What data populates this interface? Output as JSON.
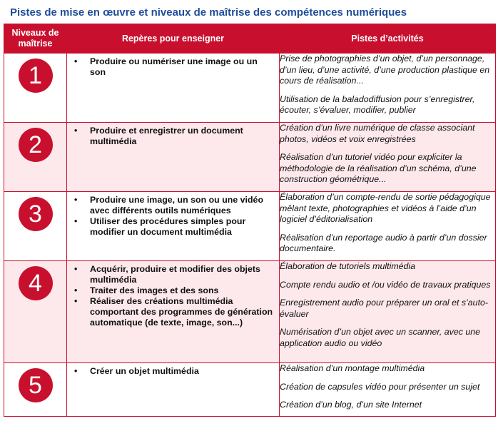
{
  "title": "Pistes de mise en œuvre et niveaux de maîtrise des compétences numériques",
  "headers": {
    "level": "Niveaux de maîtrise",
    "refs": "Repères pour enseigner",
    "activities": "Pistes d’activités"
  },
  "rows": [
    {
      "level": "1",
      "refs": [
        "Produire ou numériser une image ou un son"
      ],
      "activities": [
        "Prise de photographies d’un objet, d’un personnage, d’un lieu, d’une activité, d’une production plastique en cours de réalisation...",
        "Utilisation de la baladodiffusion pour s’enregistrer, écouter, s’évaluer, modifier, publier"
      ]
    },
    {
      "level": "2",
      "refs": [
        "Produire et enregistrer un document multimédia"
      ],
      "activities": [
        "Création d’un livre numérique de classe associant photos, vidéos et voix enregistrées",
        "Réalisation d’un tutoriel vidéo pour expliciter la méthodologie de la réalisation d’un schéma, d’une construction géométrique..."
      ]
    },
    {
      "level": "3",
      "refs": [
        "Produire une image, un son ou une vidéo avec différents outils numériques",
        "Utiliser des procédures simples pour modifier un document multimédia"
      ],
      "activities": [
        "Élaboration d’un compte-rendu de sortie pédagogique mêlant texte, photographies et vidéos à l’aide d’un logiciel d’éditorialisation",
        "Réalisation d’un reportage audio à partir d’un dossier documentaire."
      ]
    },
    {
      "level": "4",
      "refs": [
        "Acquérir, produire et modifier des objets multimédia",
        "Traiter des images et des sons",
        "Réaliser des créations multimédia comportant des programmes de génération automatique (de texte, image, son...)"
      ],
      "activities": [
        "Élaboration de tutoriels multimédia",
        "Compte rendu audio et /ou vidéo de travaux pratiques",
        "Enregistrement audio pour préparer un oral et s’auto-évaluer",
        "Numérisation d’un objet avec un scanner, avec une application audio ou vidéo"
      ]
    },
    {
      "level": "5",
      "refs": [
        "Créer un objet multimédia"
      ],
      "activities": [
        "Réalisation d’un montage multimédia",
        "Création de capsules vidéo pour présenter un sujet",
        "Création d’un blog, d’un site Internet"
      ]
    }
  ]
}
